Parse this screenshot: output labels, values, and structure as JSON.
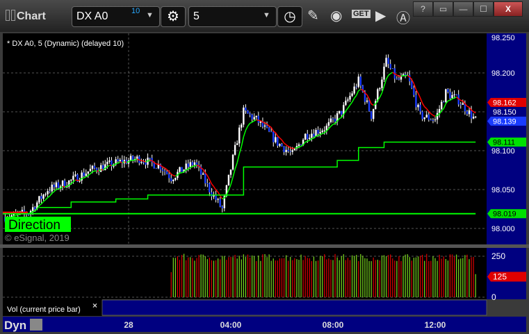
{
  "window": {
    "title": "Chart",
    "buttons": [
      "?",
      "▭",
      "—",
      "☐",
      "X"
    ]
  },
  "toolbar": {
    "symbol": "DX A0",
    "symbol_badge": "10",
    "interval": "5",
    "icons": [
      "settings-gear-icon",
      "clock-icon",
      "pencil-icon",
      "studies-icon",
      "get-icon",
      "play-icon",
      "alert-icon"
    ]
  },
  "chart": {
    "legend": "* DX A0, 5 (Dynamic) (delayed 10)",
    "copyright": "© eSignal, 2019",
    "direction_label": "Direction",
    "price_ticks": [
      "98.250",
      "98.200",
      "98.150",
      "98.100",
      "98.050",
      "98.000"
    ],
    "price_labels": [
      {
        "text": "98.162",
        "color": "#e00000"
      },
      {
        "text": "98.150",
        "color": "none"
      },
      {
        "text": "98.139",
        "color": "#1a3cff"
      },
      {
        "text": "98.111",
        "color": "#00e000"
      },
      {
        "text": "98.019",
        "color": "#00e000"
      }
    ],
    "time_labels": [
      "28",
      "04:00",
      "08:00",
      "12:00"
    ],
    "close_path": [
      [
        "27 19:10",
        98.015
      ],
      [
        "27 20:05",
        98.02
      ],
      [
        "27 20:50",
        98.05
      ],
      [
        "27 21:40",
        98.06
      ],
      [
        "27 22:30",
        98.075
      ],
      [
        "27 23:35",
        98.085
      ],
      [
        "28 00:25",
        98.09
      ],
      [
        "28 01:15",
        98.08
      ],
      [
        "28 01:40",
        98.065
      ],
      [
        "28 02:05",
        98.075
      ],
      [
        "28 02:35",
        98.085
      ],
      [
        "28 03:10",
        98.05
      ],
      [
        "28 03:40",
        98.025
      ],
      [
        "28 04:05",
        98.09
      ],
      [
        "28 04:30",
        98.15
      ],
      [
        "28 05:00",
        98.14
      ],
      [
        "28 05:25",
        98.125
      ],
      [
        "28 05:50",
        98.11
      ],
      [
        "28 06:25",
        98.095
      ],
      [
        "28 06:55",
        98.12
      ],
      [
        "28 07:45",
        98.13
      ],
      [
        "28 08:20",
        98.15
      ],
      [
        "28 09:00",
        98.19
      ],
      [
        "28 09:30",
        98.145
      ],
      [
        "28 10:05",
        98.215
      ],
      [
        "28 10:30",
        98.19
      ],
      [
        "28 10:55",
        98.195
      ],
      [
        "28 11:25",
        98.145
      ],
      [
        "28 12:00",
        98.14
      ],
      [
        "28 12:25",
        98.175
      ],
      [
        "28 12:55",
        98.165
      ],
      [
        "28 13:35",
        98.139
      ]
    ],
    "stop_steps": [
      [
        "27 20:30",
        98.027
      ],
      [
        "27 21:45",
        98.034
      ],
      [
        "27 23:30",
        98.038
      ],
      [
        "28 00:45",
        98.043
      ],
      [
        "28 04:30",
        98.079
      ],
      [
        "28 08:10",
        98.0875
      ],
      [
        "28 09:00",
        98.104
      ],
      [
        "28 10:00",
        98.111
      ]
    ],
    "stop_end": "28 13:35",
    "support_level": 98.019
  },
  "volume": {
    "label": "Vol (current price bar)",
    "ticks": [
      "250",
      "0"
    ],
    "current": "125",
    "current_color": "#e00000",
    "start": "28 01:40"
  },
  "bottom": {
    "mode": "Dyn"
  },
  "colors": {
    "up": "#ffffff",
    "down": "#1a3cff",
    "green": "#00ff00",
    "red": "#ff0000",
    "axis": "#000080"
  }
}
